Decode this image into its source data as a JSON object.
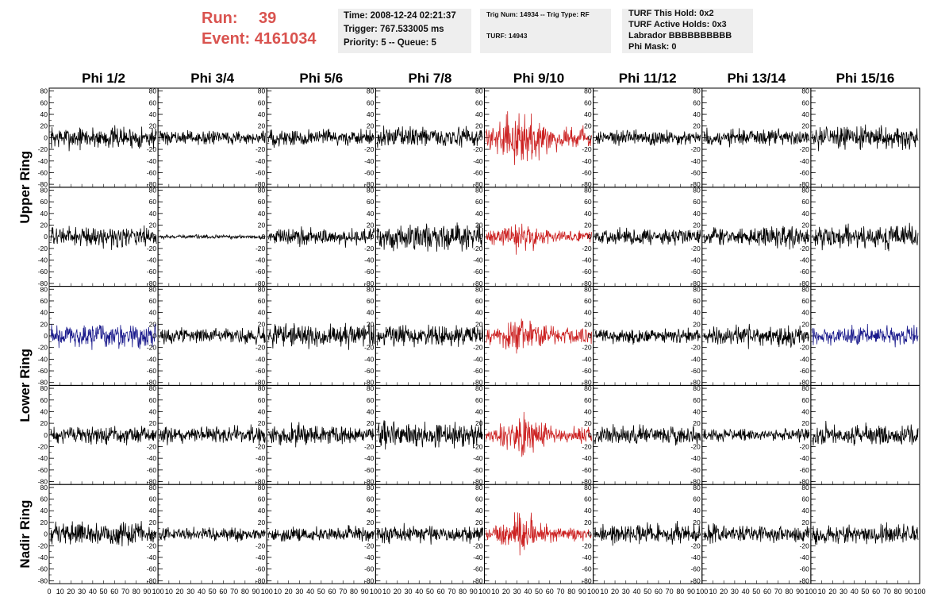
{
  "header": {
    "run_label": "Run:",
    "run_value": "39",
    "event_label": "Event:",
    "event_value": "4161034",
    "time": "Time: 2008-12-24 02:21:37",
    "trigger": "Trigger: 767.533005 ms",
    "priority": "Priority: 5 -- Queue: 5",
    "trig_num": "Trig Num: 14934 -- Trig Type: RF",
    "turf": "TURF: 14943",
    "turf_this_hold": "TURF This Hold: 0x2",
    "turf_active_holds": "TURF Active Holds: 0x3",
    "labrador": "Labrador BBBBBBBBBB",
    "phi_mask": "Phi Mask: 0"
  },
  "chart_data": {
    "type": "line",
    "columns": [
      "Phi 1/2",
      "Phi 3/4",
      "Phi 5/6",
      "Phi 7/8",
      "Phi 9/10",
      "Phi 11/12",
      "Phi 13/14",
      "Phi 15/16"
    ],
    "ring_labels": [
      "Upper Ring",
      "Lower Ring",
      "Nadir Ring"
    ],
    "rows": 5,
    "xlim": [
      0,
      100
    ],
    "ylim": [
      -85,
      85
    ],
    "y_ticks": [
      -80,
      -60,
      -40,
      -20,
      0,
      20,
      40,
      60,
      80
    ],
    "x_tick_labels": [
      "0",
      "10",
      "20",
      "30",
      "40",
      "50",
      "60",
      "70",
      "80",
      "90",
      "100"
    ],
    "colors": {
      "default": "#000000",
      "highlight_red": "#cc2222",
      "highlight_blue": "#1a1a8c"
    },
    "grid": false,
    "panels": [
      {
        "row": 0,
        "col": 0,
        "amplitude": 17,
        "color": "#000000"
      },
      {
        "row": 0,
        "col": 1,
        "amplitude": 10,
        "color": "#000000"
      },
      {
        "row": 0,
        "col": 2,
        "amplitude": 13,
        "color": "#000000"
      },
      {
        "row": 0,
        "col": 3,
        "amplitude": 15,
        "color": "#000000"
      },
      {
        "row": 0,
        "col": 4,
        "amplitude": 30,
        "color": "#cc2222"
      },
      {
        "row": 0,
        "col": 5,
        "amplitude": 12,
        "color": "#000000"
      },
      {
        "row": 0,
        "col": 6,
        "amplitude": 13,
        "color": "#000000"
      },
      {
        "row": 0,
        "col": 7,
        "amplitude": 17,
        "color": "#000000"
      },
      {
        "row": 1,
        "col": 0,
        "amplitude": 15,
        "color": "#000000"
      },
      {
        "row": 1,
        "col": 1,
        "amplitude": 3,
        "color": "#000000"
      },
      {
        "row": 1,
        "col": 2,
        "amplitude": 13,
        "color": "#000000"
      },
      {
        "row": 1,
        "col": 3,
        "amplitude": 20,
        "color": "#000000"
      },
      {
        "row": 1,
        "col": 4,
        "amplitude": 16,
        "color": "#cc2222"
      },
      {
        "row": 1,
        "col": 5,
        "amplitude": 12,
        "color": "#000000"
      },
      {
        "row": 1,
        "col": 6,
        "amplitude": 15,
        "color": "#000000"
      },
      {
        "row": 1,
        "col": 7,
        "amplitude": 17,
        "color": "#000000"
      },
      {
        "row": 2,
        "col": 0,
        "amplitude": 18,
        "color": "#1a1a8c"
      },
      {
        "row": 2,
        "col": 1,
        "amplitude": 11,
        "color": "#000000"
      },
      {
        "row": 2,
        "col": 2,
        "amplitude": 17,
        "color": "#000000"
      },
      {
        "row": 2,
        "col": 3,
        "amplitude": 16,
        "color": "#000000"
      },
      {
        "row": 2,
        "col": 4,
        "amplitude": 22,
        "color": "#cc2222"
      },
      {
        "row": 2,
        "col": 5,
        "amplitude": 11,
        "color": "#000000"
      },
      {
        "row": 2,
        "col": 6,
        "amplitude": 15,
        "color": "#000000"
      },
      {
        "row": 2,
        "col": 7,
        "amplitude": 14,
        "color": "#1a1a8c"
      },
      {
        "row": 3,
        "col": 0,
        "amplitude": 13,
        "color": "#000000"
      },
      {
        "row": 3,
        "col": 1,
        "amplitude": 13,
        "color": "#000000"
      },
      {
        "row": 3,
        "col": 2,
        "amplitude": 15,
        "color": "#000000"
      },
      {
        "row": 3,
        "col": 3,
        "amplitude": 20,
        "color": "#000000"
      },
      {
        "row": 3,
        "col": 4,
        "amplitude": 22,
        "color": "#cc2222"
      },
      {
        "row": 3,
        "col": 5,
        "amplitude": 14,
        "color": "#000000"
      },
      {
        "row": 3,
        "col": 6,
        "amplitude": 9,
        "color": "#000000"
      },
      {
        "row": 3,
        "col": 7,
        "amplitude": 16,
        "color": "#000000"
      },
      {
        "row": 4,
        "col": 0,
        "amplitude": 17,
        "color": "#000000"
      },
      {
        "row": 4,
        "col": 1,
        "amplitude": 10,
        "color": "#000000"
      },
      {
        "row": 4,
        "col": 2,
        "amplitude": 11,
        "color": "#000000"
      },
      {
        "row": 4,
        "col": 3,
        "amplitude": 14,
        "color": "#000000"
      },
      {
        "row": 4,
        "col": 4,
        "amplitude": 20,
        "color": "#cc2222"
      },
      {
        "row": 4,
        "col": 5,
        "amplitude": 15,
        "color": "#000000"
      },
      {
        "row": 4,
        "col": 6,
        "amplitude": 13,
        "color": "#000000"
      },
      {
        "row": 4,
        "col": 7,
        "amplitude": 14,
        "color": "#000000"
      }
    ]
  }
}
